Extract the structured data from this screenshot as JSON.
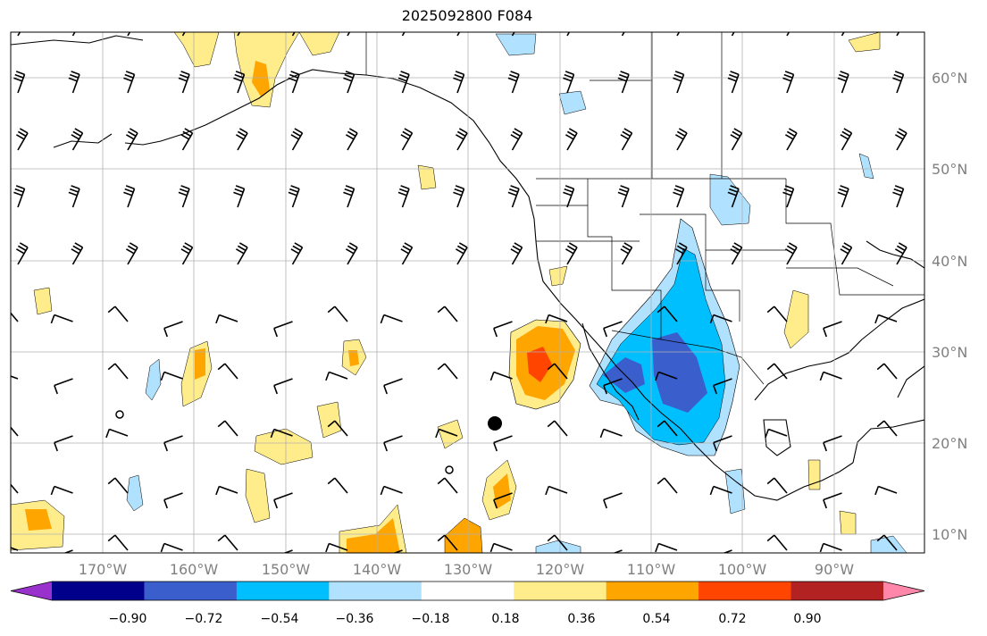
{
  "title": "2025092800 F084",
  "map": {
    "lat_labels": [
      "60°N",
      "50°N",
      "40°N",
      "30°N",
      "20°N",
      "10°N"
    ],
    "lon_labels": [
      "170°W",
      "160°W",
      "150°W",
      "140°W",
      "130°W",
      "120°W",
      "110°W",
      "100°W",
      "90°W"
    ]
  },
  "colorbar": {
    "colors": [
      "#9932cc",
      "#00008b",
      "#3a5fcd",
      "#00bfff",
      "#b0e2ff",
      "#ffffff",
      "#ffec8b",
      "#ffa500",
      "#ff4500",
      "#b22222",
      "#ff88aa"
    ],
    "tick_labels": [
      "−0.90",
      "−0.72",
      "−0.54",
      "−0.36",
      "−0.18",
      "0.18",
      "0.36",
      "0.54",
      "0.72",
      "0.90"
    ]
  },
  "markers": {
    "large_dot": {
      "lon": -127,
      "lat": 22.2
    },
    "small_circles": [
      {
        "lon": -168,
        "lat": 23
      },
      {
        "lon": -133,
        "lat": 17
      }
    ]
  }
}
